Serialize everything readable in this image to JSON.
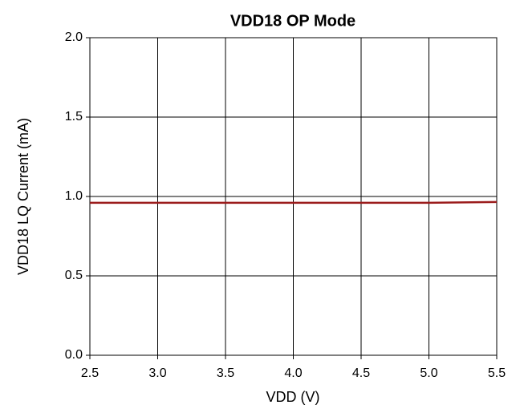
{
  "chart_data": {
    "type": "line",
    "title": "VDD18 OP Mode",
    "xlabel": "VDD (V)",
    "ylabel": "VDD18 LQ Current (mA)",
    "x": [
      2.5,
      3.0,
      3.5,
      4.0,
      4.5,
      5.0,
      5.5
    ],
    "series": [
      {
        "color": "#9b1c1c",
        "values": [
          0.96,
          0.96,
          0.96,
          0.96,
          0.96,
          0.96,
          0.965
        ]
      }
    ],
    "xlim": [
      2.5,
      5.5
    ],
    "xticks": [
      2.5,
      {
        "value": 3,
        "label": "3.0"
      },
      3.5,
      {
        "value": 4,
        "label": "4.0"
      },
      4.5,
      {
        "value": 5,
        "label": "5.0"
      },
      5.5
    ],
    "ylim": [
      0,
      2
    ],
    "yticks": [
      {
        "value": 0,
        "label": "0.0"
      },
      0.5,
      {
        "value": 1,
        "label": "1.0"
      },
      1.5,
      {
        "value": 2,
        "label": "2.0"
      }
    ],
    "grid": true
  }
}
